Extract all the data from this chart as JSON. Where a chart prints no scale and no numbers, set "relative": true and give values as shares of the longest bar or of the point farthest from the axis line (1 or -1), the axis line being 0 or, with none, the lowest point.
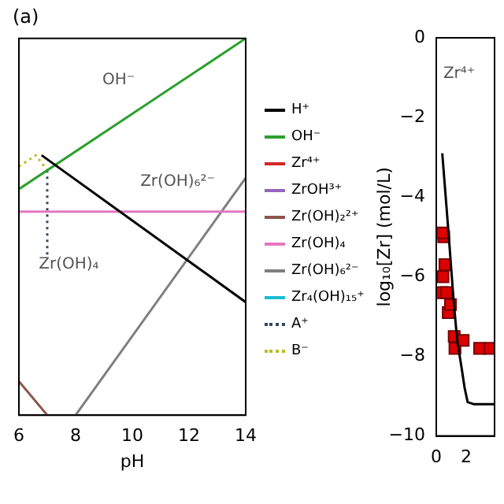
{
  "chart_data": [
    {
      "type": "line",
      "title": "(a)",
      "xlabel": "pH",
      "relative": true,
      "tick_labels": "x",
      "xlim": [
        6,
        14
      ],
      "xticks": [
        6,
        8,
        10,
        12,
        14
      ],
      "legend": "right",
      "marker": "none",
      "grid": false,
      "annotations": [
        "OH⁻",
        "Zr(OH)₆²⁻",
        "Zr(OH)₄"
      ],
      "series": [
        {
          "name": "H⁺",
          "color": "#000000",
          "x": [
            6.8,
            14
          ],
          "values": [
            0.69,
            0.3
          ]
        },
        {
          "name": "OH⁻",
          "color": "#2ca02c",
          "x": [
            6,
            14
          ],
          "values": [
            0.6,
            1
          ]
        },
        {
          "name": "Zr⁴⁺",
          "color": "#d62728"
        },
        {
          "name": "ZrOH³⁺",
          "color": "#9467bd"
        },
        {
          "name": "Zr(OH)₂²⁺",
          "color": "#8c564b",
          "x": [
            6,
            7
          ],
          "values": [
            0.09,
            0
          ]
        },
        {
          "name": "Zr(OH)₄",
          "color": "#e377c2",
          "x": [
            6,
            14
          ],
          "values": [
            0.54,
            0.54
          ]
        },
        {
          "name": "Zr(OH)₆²⁻",
          "color": "#7f7f7f",
          "x": [
            8,
            14
          ],
          "values": [
            0,
            0.63
          ]
        },
        {
          "name": "Zr₄(OH)₁₅⁺",
          "color": "#17becf"
        },
        {
          "name": "A⁺",
          "color": "#34495e",
          "line_style": "dotted",
          "x": [
            7,
            7
          ],
          "values": [
            0.65,
            0.42
          ]
        },
        {
          "name": "B⁻",
          "color": "#bcbd22",
          "line_style": "dotted",
          "x": [
            6,
            6.6,
            7
          ],
          "values": [
            0.66,
            0.69,
            0.65
          ]
        }
      ]
    },
    {
      "type": "scatter",
      "ylabel": "log₁₀[Zr] (mol/L)",
      "xlim": [
        0,
        3.9
      ],
      "xticks": [
        0,
        2
      ],
      "ylim": [
        -10,
        0
      ],
      "yticks": [
        -10,
        -8,
        -6,
        -4,
        -2,
        0
      ],
      "legend": false,
      "grid": false,
      "annotations": [
        "Zr⁴⁺"
      ],
      "series": [
        {
          "type": "line",
          "color": "#000000",
          "marker": "none",
          "x": [
            0.4,
            0.8,
            1.15,
            1.4,
            1.7,
            1.9,
            2.1,
            2.5,
            3.9
          ],
          "values": [
            -2.9,
            -4.8,
            -6.55,
            -7.6,
            -8.3,
            -8.8,
            -9.15,
            -9.2,
            -9.2
          ]
        },
        {
          "type": "scatter",
          "color": "#dd0000",
          "marker": "square",
          "x": [
            0.5,
            0.4,
            0.58,
            0.45,
            0.35,
            0.7,
            0.8,
            0.95,
            1.2,
            1.25,
            1.8,
            2.9,
            3.6
          ],
          "values": [
            -5,
            -4.9,
            -5.7,
            -6,
            -6.4,
            -6.4,
            -6.9,
            -6.7,
            -7.5,
            -7.8,
            -7.6,
            -7.8,
            -7.8
          ]
        }
      ]
    }
  ]
}
